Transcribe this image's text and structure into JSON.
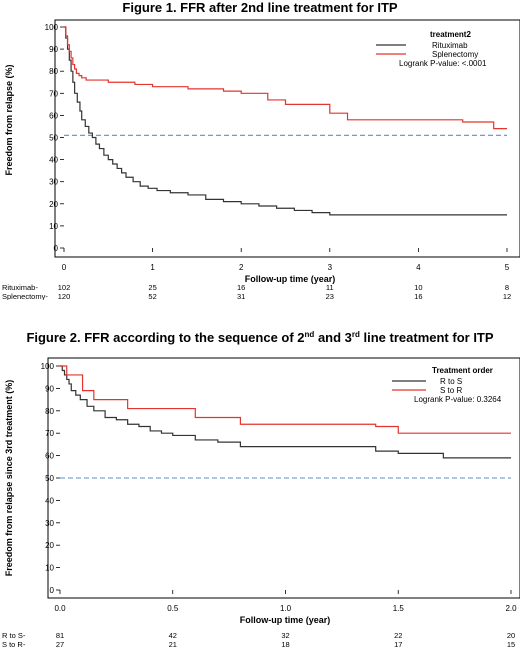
{
  "chart_data": [
    {
      "type": "line",
      "title": "Figure 1. FFR after 2nd line treatment for ITP",
      "xlabel": "Follow-up time (year)",
      "ylabel": "Freedom from relapse (%)",
      "xlim": [
        0,
        5
      ],
      "ylim": [
        0,
        100
      ],
      "xticks": [
        "0",
        "1",
        "2",
        "3",
        "4",
        "5"
      ],
      "yticks": [
        "0",
        "10",
        "20",
        "30",
        "40",
        "50",
        "60",
        "70",
        "80",
        "90",
        "100"
      ],
      "reference_line": 51,
      "legend": {
        "title": "treatment2",
        "position": "top-right",
        "pvalue": "Logrank P-value: <.0001"
      },
      "series": [
        {
          "name": "Rituximab",
          "color": "#333333",
          "x": [
            0,
            0.02,
            0.04,
            0.06,
            0.08,
            0.1,
            0.12,
            0.15,
            0.18,
            0.2,
            0.24,
            0.28,
            0.32,
            0.36,
            0.4,
            0.45,
            0.5,
            0.55,
            0.6,
            0.65,
            0.7,
            0.78,
            0.86,
            0.95,
            1.05,
            1.2,
            1.4,
            1.6,
            1.8,
            2.0,
            2.2,
            2.4,
            2.6,
            2.8,
            3.0,
            3.2,
            5.0
          ],
          "y": [
            100,
            95,
            90,
            85,
            80,
            75,
            70,
            66,
            62,
            58,
            55,
            52,
            50,
            47,
            45,
            42,
            40,
            38,
            36,
            34,
            32,
            30,
            28,
            27,
            26,
            25,
            24,
            22,
            21,
            20,
            19,
            18,
            17,
            16,
            15,
            15,
            15
          ]
        },
        {
          "name": "Splenectomy",
          "color": "#e3342f",
          "x": [
            0,
            0.02,
            0.04,
            0.06,
            0.08,
            0.1,
            0.12,
            0.14,
            0.17,
            0.2,
            0.25,
            0.3,
            0.5,
            0.8,
            1.0,
            1.2,
            1.4,
            1.6,
            1.8,
            2.0,
            2.3,
            2.5,
            3.0,
            3.2,
            4.0,
            4.5,
            4.85,
            5.0
          ],
          "y": [
            100,
            96,
            92,
            89,
            86,
            83,
            81,
            79,
            78,
            77,
            76,
            76,
            75,
            74,
            73,
            73,
            72,
            72,
            71,
            70,
            67,
            65,
            61,
            58,
            58,
            57,
            54,
            54
          ]
        }
      ],
      "risk_table": {
        "rows": [
          {
            "label": "Rituximab-",
            "values": [
              "102",
              "25",
              "16",
              "11",
              "10",
              "8"
            ]
          },
          {
            "label": "Splenectomy-",
            "values": [
              "120",
              "52",
              "31",
              "23",
              "16",
              "12"
            ]
          }
        ]
      }
    },
    {
      "type": "line",
      "title": "Figure 2. FFR according  to the sequence of 2nd and 3rd line treatment for ITP",
      "xlabel": "Follow-up time (year)",
      "ylabel": "Freedom from relapse since 3rd treatment (%)",
      "xlim": [
        0,
        2
      ],
      "ylim": [
        0,
        100
      ],
      "xticks": [
        "0.0",
        "0.5",
        "1.0",
        "1.5",
        "2.0"
      ],
      "yticks": [
        "0",
        "10",
        "20",
        "30",
        "40",
        "50",
        "60",
        "70",
        "80",
        "90",
        "100"
      ],
      "reference_line": 50,
      "legend": {
        "title": "Treatment order",
        "position": "top-right",
        "pvalue": "Logrank P-value: 0.3264"
      },
      "series": [
        {
          "name": "R to S",
          "color": "#333333",
          "x": [
            0,
            0.01,
            0.02,
            0.03,
            0.04,
            0.05,
            0.07,
            0.09,
            0.12,
            0.15,
            0.2,
            0.25,
            0.3,
            0.35,
            0.4,
            0.45,
            0.5,
            0.6,
            0.7,
            0.8,
            1.0,
            1.2,
            1.4,
            1.5,
            1.7,
            2.0
          ],
          "y": [
            100,
            98,
            96,
            94,
            92,
            89,
            87,
            85,
            82,
            80,
            77,
            76,
            74,
            73,
            71,
            70,
            69,
            67,
            66,
            64,
            64,
            64,
            62,
            61,
            59,
            59
          ]
        },
        {
          "name": "S to R",
          "color": "#e3342f",
          "x": [
            0,
            0.03,
            0.05,
            0.1,
            0.15,
            0.2,
            0.3,
            0.5,
            0.6,
            0.8,
            1.0,
            1.2,
            1.4,
            1.5,
            2.0
          ],
          "y": [
            100,
            96,
            96,
            89,
            85,
            85,
            81,
            81,
            77,
            74,
            74,
            74,
            73,
            70,
            70
          ]
        }
      ],
      "risk_table": {
        "rows": [
          {
            "label": "R to S-",
            "values": [
              "81",
              "42",
              "32",
              "22",
              "20"
            ]
          },
          {
            "label": "S to R-",
            "values": [
              "27",
              "21",
              "18",
              "17",
              "15"
            ]
          }
        ]
      }
    }
  ]
}
